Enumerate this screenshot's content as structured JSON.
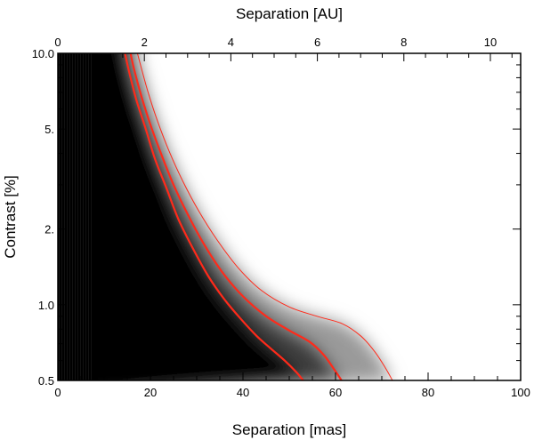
{
  "chart_data": {
    "type": "heatmap",
    "xlabel": "Separation [mas]",
    "ylabel": "Contrast [%]",
    "x2label": "Separation [AU]",
    "xlim": [
      0,
      100
    ],
    "ylim": [
      0.5,
      10.0
    ],
    "yscale": "log",
    "x2lim": [
      0,
      10.7
    ],
    "xticks": [
      0,
      20,
      40,
      60,
      80,
      100
    ],
    "xtick_labels": [
      "0",
      "20",
      "40",
      "60",
      "80",
      "100"
    ],
    "x2ticks": [
      0,
      2,
      4,
      6,
      8,
      10
    ],
    "x2tick_labels": [
      "0",
      "2",
      "4",
      "6",
      "8",
      "10"
    ],
    "yticks": [
      0.5,
      1.0,
      2.0,
      5.0,
      10.0
    ],
    "ytick_labels": [
      "0.5",
      "1.0",
      "2.",
      "5.",
      "10.0"
    ],
    "grid": false,
    "colormap": "grayscale",
    "colors": {
      "background": "#ffffff",
      "dark": "#000000",
      "contour": "#ff2a1a"
    },
    "series": [
      {
        "line_width": "thick",
        "x": [
          14.5,
          15.5,
          17.0,
          19.0,
          21.0,
          23.5,
          26.0,
          29.0,
          32.5,
          36.0,
          39.5,
          43.0,
          46.0,
          49.0,
          51.5,
          53.0
        ],
        "y": [
          10.0,
          8.3,
          6.5,
          5.0,
          3.8,
          2.9,
          2.2,
          1.7,
          1.3,
          1.05,
          0.88,
          0.75,
          0.67,
          0.6,
          0.54,
          0.5
        ]
      },
      {
        "line_width": "thick",
        "x": [
          15.7,
          16.5,
          18.0,
          20.0,
          22.5,
          25.0,
          28.0,
          31.5,
          35.5,
          40.0,
          45.0,
          50.0,
          54.5,
          57.5,
          59.8,
          61.3
        ],
        "y": [
          10.0,
          8.6,
          6.8,
          5.2,
          3.9,
          3.0,
          2.3,
          1.75,
          1.35,
          1.08,
          0.9,
          0.79,
          0.71,
          0.63,
          0.55,
          0.5
        ]
      },
      {
        "line_width": "thin",
        "x": [
          17.2,
          18.0,
          19.5,
          21.5,
          24.0,
          27.0,
          30.5,
          34.5,
          39.0,
          44.0,
          50.0,
          56.0,
          61.5,
          65.5,
          68.5,
          70.8,
          72.3
        ],
        "y": [
          10.0,
          8.8,
          7.0,
          5.4,
          4.1,
          3.1,
          2.35,
          1.8,
          1.4,
          1.14,
          0.98,
          0.9,
          0.84,
          0.75,
          0.65,
          0.56,
          0.5
        ]
      }
    ]
  }
}
